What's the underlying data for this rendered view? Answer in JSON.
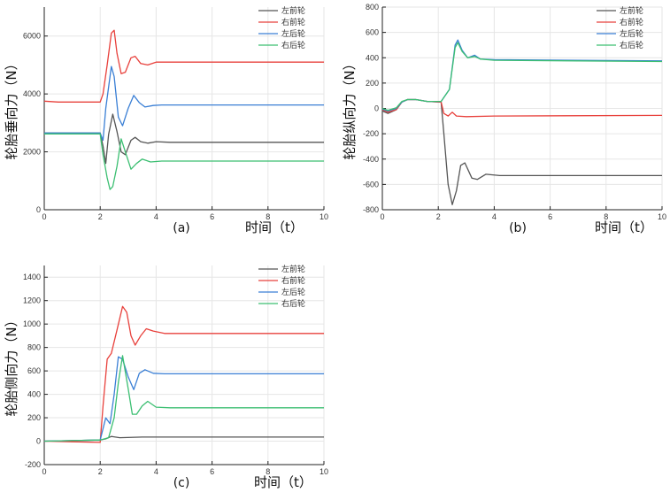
{
  "chart_data": [
    {
      "type": "line",
      "panel_label": "(a)",
      "xlabel": "时间（t）",
      "ylabel": "轮胎垂向力（N）",
      "xlim": [
        0,
        10
      ],
      "ylim": [
        0,
        7000
      ],
      "xticks": [
        0,
        2,
        4,
        6,
        8,
        10
      ],
      "yticks": [
        0,
        2000,
        4000,
        6000
      ],
      "legend": [
        "左前轮",
        "右前轮",
        "左后轮",
        "右后轮"
      ],
      "series": [
        {
          "name": "左前轮",
          "color": "#555555",
          "points": [
            [
              0,
              2650
            ],
            [
              2,
              2650
            ],
            [
              2.1,
              2200
            ],
            [
              2.2,
              1600
            ],
            [
              2.3,
              2600
            ],
            [
              2.45,
              3300
            ],
            [
              2.6,
              2700
            ],
            [
              2.75,
              2000
            ],
            [
              2.9,
              1900
            ],
            [
              3.1,
              2400
            ],
            [
              3.25,
              2500
            ],
            [
              3.45,
              2350
            ],
            [
              3.7,
              2300
            ],
            [
              4,
              2350
            ],
            [
              4.5,
              2330
            ],
            [
              10,
              2330
            ]
          ]
        },
        {
          "name": "右前轮",
          "color": "#e8413c",
          "points": [
            [
              0,
              3750
            ],
            [
              0.5,
              3720
            ],
            [
              1,
              3720
            ],
            [
              2,
              3720
            ],
            [
              2.1,
              4000
            ],
            [
              2.25,
              5000
            ],
            [
              2.4,
              6100
            ],
            [
              2.5,
              6200
            ],
            [
              2.6,
              5400
            ],
            [
              2.75,
              4700
            ],
            [
              2.9,
              4750
            ],
            [
              3.1,
              5250
            ],
            [
              3.25,
              5300
            ],
            [
              3.45,
              5050
            ],
            [
              3.7,
              5000
            ],
            [
              4,
              5100
            ],
            [
              4.5,
              5100
            ],
            [
              10,
              5100
            ]
          ]
        },
        {
          "name": "左后轮",
          "color": "#3a7fd5",
          "points": [
            [
              0,
              2650
            ],
            [
              2,
              2650
            ],
            [
              2.1,
              2400
            ],
            [
              2.2,
              3500
            ],
            [
              2.4,
              4950
            ],
            [
              2.5,
              4600
            ],
            [
              2.65,
              3200
            ],
            [
              2.8,
              2900
            ],
            [
              3,
              3500
            ],
            [
              3.2,
              3950
            ],
            [
              3.4,
              3700
            ],
            [
              3.6,
              3550
            ],
            [
              3.9,
              3600
            ],
            [
              4.2,
              3620
            ],
            [
              10,
              3620
            ]
          ]
        },
        {
          "name": "右后轮",
          "color": "#3cbf72",
          "points": [
            [
              0,
              2620
            ],
            [
              2,
              2620
            ],
            [
              2.1,
              1900
            ],
            [
              2.25,
              1100
            ],
            [
              2.35,
              700
            ],
            [
              2.45,
              800
            ],
            [
              2.6,
              1500
            ],
            [
              2.75,
              2450
            ],
            [
              2.9,
              2000
            ],
            [
              3.1,
              1400
            ],
            [
              3.3,
              1600
            ],
            [
              3.5,
              1750
            ],
            [
              3.8,
              1650
            ],
            [
              4.2,
              1680
            ],
            [
              10,
              1680
            ]
          ]
        }
      ]
    },
    {
      "type": "line",
      "panel_label": "(b)",
      "xlabel": "时间（t）",
      "ylabel": "轮胎纵向力（N）",
      "xlim": [
        0,
        10
      ],
      "ylim": [
        -800,
        800
      ],
      "xticks": [
        0,
        2,
        4,
        6,
        8,
        10
      ],
      "yticks": [
        -800,
        -600,
        -400,
        -200,
        0,
        200,
        400,
        600,
        800
      ],
      "legend": [
        "左前轮",
        "右前轮",
        "左后轮",
        "右后轮"
      ],
      "series": [
        {
          "name": "左前轮",
          "color": "#555555",
          "points": [
            [
              0,
              -20
            ],
            [
              0.2,
              -40
            ],
            [
              0.5,
              -10
            ],
            [
              0.7,
              50
            ],
            [
              0.9,
              70
            ],
            [
              1.2,
              70
            ],
            [
              1.6,
              55
            ],
            [
              2.1,
              50
            ],
            [
              2.2,
              -200
            ],
            [
              2.35,
              -600
            ],
            [
              2.5,
              -760
            ],
            [
              2.65,
              -650
            ],
            [
              2.8,
              -450
            ],
            [
              2.95,
              -430
            ],
            [
              3.2,
              -550
            ],
            [
              3.4,
              -560
            ],
            [
              3.7,
              -520
            ],
            [
              4.2,
              -530
            ],
            [
              10,
              -530
            ]
          ]
        },
        {
          "name": "右前轮",
          "color": "#e8413c",
          "points": [
            [
              0,
              -10
            ],
            [
              0.2,
              -30
            ],
            [
              0.5,
              -10
            ],
            [
              0.7,
              50
            ],
            [
              0.9,
              70
            ],
            [
              1.2,
              70
            ],
            [
              1.6,
              55
            ],
            [
              2.1,
              50
            ],
            [
              2.2,
              -40
            ],
            [
              2.35,
              -60
            ],
            [
              2.5,
              -30
            ],
            [
              2.65,
              -60
            ],
            [
              3,
              -65
            ],
            [
              4,
              -60
            ],
            [
              10,
              -55
            ]
          ]
        },
        {
          "name": "左后轮",
          "color": "#3a7fd5",
          "points": [
            [
              0,
              -5
            ],
            [
              0.2,
              -20
            ],
            [
              0.5,
              0
            ],
            [
              0.7,
              50
            ],
            [
              0.9,
              70
            ],
            [
              1.2,
              70
            ],
            [
              1.6,
              55
            ],
            [
              2.1,
              55
            ],
            [
              2.4,
              150
            ],
            [
              2.6,
              500
            ],
            [
              2.7,
              540
            ],
            [
              2.85,
              460
            ],
            [
              3.05,
              400
            ],
            [
              3.3,
              420
            ],
            [
              3.5,
              390
            ],
            [
              4,
              385
            ],
            [
              10,
              375
            ]
          ]
        },
        {
          "name": "右后轮",
          "color": "#3cbf72",
          "points": [
            [
              0,
              0
            ],
            [
              0.2,
              -15
            ],
            [
              0.5,
              5
            ],
            [
              0.7,
              55
            ],
            [
              0.9,
              70
            ],
            [
              1.2,
              70
            ],
            [
              1.6,
              55
            ],
            [
              2.1,
              55
            ],
            [
              2.4,
              150
            ],
            [
              2.6,
              480
            ],
            [
              2.7,
              520
            ],
            [
              2.85,
              450
            ],
            [
              3.05,
              400
            ],
            [
              3.3,
              410
            ],
            [
              3.5,
              390
            ],
            [
              4,
              380
            ],
            [
              10,
              370
            ]
          ]
        }
      ]
    },
    {
      "type": "line",
      "panel_label": "(c)",
      "xlabel": "时间（t）",
      "ylabel": "轮胎侧向力（N）",
      "xlim": [
        0,
        10
      ],
      "ylim": [
        -200,
        1500
      ],
      "xticks": [
        0,
        2,
        4,
        6,
        8,
        10
      ],
      "yticks": [
        -200,
        0,
        200,
        400,
        600,
        800,
        1000,
        1200,
        1400
      ],
      "legend": [
        "左前轮",
        "右前轮",
        "左后轮",
        "右后轮"
      ],
      "series": [
        {
          "name": "左前轮",
          "color": "#555555",
          "points": [
            [
              0,
              0
            ],
            [
              1,
              5
            ],
            [
              2,
              10
            ],
            [
              2.2,
              20
            ],
            [
              2.4,
              40
            ],
            [
              2.7,
              30
            ],
            [
              3.5,
              35
            ],
            [
              10,
              35
            ]
          ]
        },
        {
          "name": "右前轮",
          "color": "#e8413c",
          "points": [
            [
              0,
              0
            ],
            [
              1,
              -5
            ],
            [
              2,
              -10
            ],
            [
              2.1,
              300
            ],
            [
              2.25,
              700
            ],
            [
              2.4,
              750
            ],
            [
              2.6,
              950
            ],
            [
              2.8,
              1150
            ],
            [
              2.95,
              1100
            ],
            [
              3.1,
              900
            ],
            [
              3.25,
              820
            ],
            [
              3.45,
              900
            ],
            [
              3.65,
              960
            ],
            [
              3.9,
              940
            ],
            [
              4.3,
              920
            ],
            [
              10,
              920
            ]
          ]
        },
        {
          "name": "左后轮",
          "color": "#3a7fd5",
          "points": [
            [
              0,
              0
            ],
            [
              1,
              5
            ],
            [
              2,
              10
            ],
            [
              2.2,
              200
            ],
            [
              2.35,
              150
            ],
            [
              2.5,
              400
            ],
            [
              2.65,
              720
            ],
            [
              2.8,
              700
            ],
            [
              3,
              550
            ],
            [
              3.2,
              440
            ],
            [
              3.4,
              580
            ],
            [
              3.6,
              610
            ],
            [
              3.9,
              580
            ],
            [
              4.3,
              575
            ],
            [
              10,
              575
            ]
          ]
        },
        {
          "name": "右后轮",
          "color": "#3cbf72",
          "points": [
            [
              0,
              0
            ],
            [
              1,
              5
            ],
            [
              2,
              10
            ],
            [
              2.3,
              30
            ],
            [
              2.5,
              200
            ],
            [
              2.65,
              500
            ],
            [
              2.8,
              730
            ],
            [
              3,
              450
            ],
            [
              3.15,
              230
            ],
            [
              3.3,
              230
            ],
            [
              3.5,
              300
            ],
            [
              3.7,
              340
            ],
            [
              4,
              290
            ],
            [
              4.5,
              285
            ],
            [
              10,
              285
            ]
          ]
        }
      ]
    }
  ]
}
